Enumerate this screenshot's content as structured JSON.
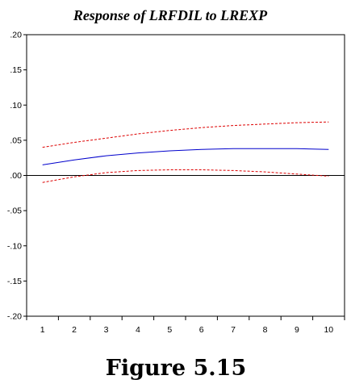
{
  "chart_data": {
    "type": "line",
    "title": "Response of LRFDIL to LREXP",
    "caption": "Figure 5.15",
    "xlabel": "",
    "ylabel": "",
    "x": [
      1,
      2,
      3,
      4,
      5,
      6,
      7,
      8,
      9,
      10
    ],
    "xticks": [
      "1",
      "2",
      "3",
      "4",
      "5",
      "6",
      "7",
      "8",
      "9",
      "10"
    ],
    "ylim": [
      -0.2,
      0.2
    ],
    "yticks": [
      {
        "value": 0.2,
        "label": ".20"
      },
      {
        "value": 0.15,
        "label": ".15"
      },
      {
        "value": 0.1,
        "label": ".10"
      },
      {
        "value": 0.05,
        "label": ".05"
      },
      {
        "value": 0.0,
        "label": ".00"
      },
      {
        "value": -0.05,
        "label": "-.05"
      },
      {
        "value": -0.1,
        "label": "-.10"
      },
      {
        "value": -0.15,
        "label": "-.15"
      },
      {
        "value": -0.2,
        "label": "-.20"
      }
    ],
    "zero_line": true,
    "grid": false,
    "series": [
      {
        "style": "solid",
        "color": "#0000cc",
        "values": [
          0.015,
          0.022,
          0.028,
          0.032,
          0.035,
          0.037,
          0.038,
          0.038,
          0.038,
          0.037
        ]
      },
      {
        "style": "dashed",
        "color": "#dd0000",
        "values": [
          0.04,
          0.047,
          0.053,
          0.059,
          0.064,
          0.068,
          0.071,
          0.073,
          0.075,
          0.076
        ]
      },
      {
        "style": "dashed",
        "color": "#dd0000",
        "values": [
          -0.01,
          -0.002,
          0.004,
          0.007,
          0.008,
          0.008,
          0.007,
          0.005,
          0.002,
          -0.001
        ]
      }
    ]
  }
}
